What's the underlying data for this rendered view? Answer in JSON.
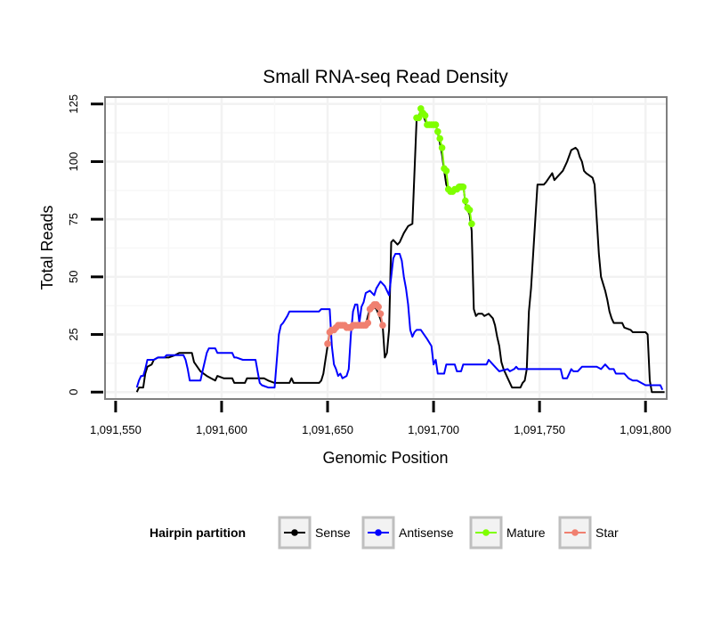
{
  "chart_data": {
    "type": "line",
    "title": "Small RNA-seq Read Density",
    "xlabel": "Genomic Position",
    "ylabel": "Total Reads",
    "xlim": [
      1091545,
      1091810
    ],
    "ylim": [
      -3,
      128
    ],
    "x_ticks": [
      1091550,
      1091600,
      1091650,
      1091700,
      1091750,
      1091800
    ],
    "x_tick_labels": [
      "1,091,550",
      "1,091,600",
      "1,091,650",
      "1,091,700",
      "1,091,750",
      "1,091,800"
    ],
    "y_ticks": [
      0,
      25,
      50,
      75,
      100,
      125
    ],
    "y_tick_labels": [
      "0",
      "25",
      "50",
      "75",
      "100",
      "125"
    ],
    "grid": true,
    "legend": {
      "title": "Hairpin partition",
      "position": "bottom",
      "entries": [
        "Sense",
        "Antisense",
        "Mature",
        "Star"
      ]
    },
    "series": [
      {
        "name": "Sense",
        "color": "#000000",
        "markers": false,
        "points": [
          [
            1091560,
            0
          ],
          [
            1091561,
            2
          ],
          [
            1091562,
            2
          ],
          [
            1091563,
            2
          ],
          [
            1091564,
            8
          ],
          [
            1091565,
            11
          ],
          [
            1091567,
            12
          ],
          [
            1091568,
            14
          ],
          [
            1091570,
            15
          ],
          [
            1091575,
            15
          ],
          [
            1091578,
            16
          ],
          [
            1091580,
            17
          ],
          [
            1091586,
            17
          ],
          [
            1091587,
            13
          ],
          [
            1091590,
            9
          ],
          [
            1091593,
            7
          ],
          [
            1091595,
            6
          ],
          [
            1091597,
            5
          ],
          [
            1091598,
            7
          ],
          [
            1091601,
            6
          ],
          [
            1091605,
            6
          ],
          [
            1091606,
            4
          ],
          [
            1091611,
            4
          ],
          [
            1091612,
            6
          ],
          [
            1091616,
            6
          ],
          [
            1091620,
            6
          ],
          [
            1091622,
            5
          ],
          [
            1091625,
            4
          ],
          [
            1091632,
            4
          ],
          [
            1091633,
            6
          ],
          [
            1091634,
            4
          ],
          [
            1091646,
            4
          ],
          [
            1091647,
            5
          ],
          [
            1091648,
            8
          ],
          [
            1091649,
            14
          ],
          [
            1091650,
            20
          ],
          [
            1091651,
            26
          ],
          [
            1091653,
            28
          ],
          [
            1091658,
            29
          ],
          [
            1091668,
            29
          ],
          [
            1091669,
            33
          ],
          [
            1091670,
            36
          ],
          [
            1091672,
            37
          ],
          [
            1091673,
            36
          ],
          [
            1091674,
            34
          ],
          [
            1091676,
            29
          ],
          [
            1091677,
            15
          ],
          [
            1091678,
            17
          ],
          [
            1091679,
            27
          ],
          [
            1091680,
            65
          ],
          [
            1091681,
            66
          ],
          [
            1091683,
            64
          ],
          [
            1091684,
            65
          ],
          [
            1091686,
            69
          ],
          [
            1091688,
            72
          ],
          [
            1091690,
            73
          ],
          [
            1091692,
            118
          ],
          [
            1091693,
            120
          ],
          [
            1091694,
            122
          ],
          [
            1091695,
            120
          ],
          [
            1091697,
            116
          ],
          [
            1091701,
            116
          ],
          [
            1091702,
            113
          ],
          [
            1091703,
            108
          ],
          [
            1091704,
            103
          ],
          [
            1091705,
            96
          ],
          [
            1091706,
            90
          ],
          [
            1091707,
            88
          ],
          [
            1091710,
            87
          ],
          [
            1091712,
            90
          ],
          [
            1091714,
            90
          ],
          [
            1091715,
            82
          ],
          [
            1091716,
            79
          ],
          [
            1091717,
            77
          ],
          [
            1091718,
            70
          ],
          [
            1091719,
            36
          ],
          [
            1091720,
            33
          ],
          [
            1091721,
            34
          ],
          [
            1091723,
            34
          ],
          [
            1091724,
            33
          ],
          [
            1091726,
            34
          ],
          [
            1091728,
            32
          ],
          [
            1091729,
            29
          ],
          [
            1091730,
            24
          ],
          [
            1091731,
            20
          ],
          [
            1091732,
            13
          ],
          [
            1091733,
            10
          ],
          [
            1091735,
            6
          ],
          [
            1091737,
            2
          ],
          [
            1091741,
            2
          ],
          [
            1091742,
            4
          ],
          [
            1091743,
            5
          ],
          [
            1091744,
            10
          ],
          [
            1091745,
            35
          ],
          [
            1091746,
            45
          ],
          [
            1091747,
            60
          ],
          [
            1091748,
            75
          ],
          [
            1091749,
            90
          ],
          [
            1091752,
            90
          ],
          [
            1091753,
            91
          ],
          [
            1091756,
            95
          ],
          [
            1091757,
            92
          ],
          [
            1091760,
            95
          ],
          [
            1091761,
            96
          ],
          [
            1091763,
            100
          ],
          [
            1091765,
            105
          ],
          [
            1091767,
            106
          ],
          [
            1091768,
            105
          ],
          [
            1091769,
            102
          ],
          [
            1091770,
            100
          ],
          [
            1091771,
            96
          ],
          [
            1091772,
            95
          ],
          [
            1091775,
            93
          ],
          [
            1091776,
            90
          ],
          [
            1091778,
            60
          ],
          [
            1091779,
            50
          ],
          [
            1091781,
            44
          ],
          [
            1091782,
            40
          ],
          [
            1091783,
            35
          ],
          [
            1091784,
            32
          ],
          [
            1091785,
            30
          ],
          [
            1091789,
            30
          ],
          [
            1091790,
            28
          ],
          [
            1091793,
            27
          ],
          [
            1091794,
            26
          ],
          [
            1091799,
            26
          ],
          [
            1091800,
            26
          ],
          [
            1091801,
            25
          ],
          [
            1091802,
            5
          ],
          [
            1091803,
            0
          ],
          [
            1091809,
            0
          ]
        ]
      },
      {
        "name": "Antisense",
        "color": "#0000ff",
        "markers": false,
        "points": [
          [
            1091560,
            2
          ],
          [
            1091561,
            5
          ],
          [
            1091562,
            7
          ],
          [
            1091563,
            7
          ],
          [
            1091564,
            10
          ],
          [
            1091565,
            14
          ],
          [
            1091568,
            14
          ],
          [
            1091570,
            15
          ],
          [
            1091573,
            15
          ],
          [
            1091574,
            16
          ],
          [
            1091582,
            16
          ],
          [
            1091583,
            14
          ],
          [
            1091584,
            10
          ],
          [
            1091585,
            5
          ],
          [
            1091590,
            5
          ],
          [
            1091591,
            9
          ],
          [
            1091592,
            13
          ],
          [
            1091593,
            17
          ],
          [
            1091594,
            19
          ],
          [
            1091597,
            19
          ],
          [
            1091598,
            17
          ],
          [
            1091605,
            17
          ],
          [
            1091606,
            15
          ],
          [
            1091607,
            15
          ],
          [
            1091610,
            14
          ],
          [
            1091611,
            14
          ],
          [
            1091616,
            14
          ],
          [
            1091617,
            9
          ],
          [
            1091618,
            4
          ],
          [
            1091619,
            3
          ],
          [
            1091622,
            2
          ],
          [
            1091625,
            2
          ],
          [
            1091627,
            25
          ],
          [
            1091628,
            29
          ],
          [
            1091629,
            30
          ],
          [
            1091631,
            33
          ],
          [
            1091632,
            35
          ],
          [
            1091646,
            35
          ],
          [
            1091647,
            36
          ],
          [
            1091651,
            36
          ],
          [
            1091652,
            20
          ],
          [
            1091653,
            12
          ],
          [
            1091654,
            10
          ],
          [
            1091655,
            7
          ],
          [
            1091656,
            8
          ],
          [
            1091657,
            6
          ],
          [
            1091659,
            7
          ],
          [
            1091660,
            10
          ],
          [
            1091661,
            25
          ],
          [
            1091662,
            35
          ],
          [
            1091663,
            38
          ],
          [
            1091664,
            38
          ],
          [
            1091665,
            30
          ],
          [
            1091666,
            37
          ],
          [
            1091667,
            39
          ],
          [
            1091668,
            43
          ],
          [
            1091670,
            44
          ],
          [
            1091672,
            42
          ],
          [
            1091673,
            45
          ],
          [
            1091675,
            48
          ],
          [
            1091677,
            46
          ],
          [
            1091679,
            42
          ],
          [
            1091680,
            50
          ],
          [
            1091681,
            58
          ],
          [
            1091682,
            60
          ],
          [
            1091684,
            60
          ],
          [
            1091685,
            57
          ],
          [
            1091686,
            50
          ],
          [
            1091687,
            45
          ],
          [
            1091688,
            38
          ],
          [
            1091689,
            27
          ],
          [
            1091690,
            24
          ],
          [
            1091691,
            26
          ],
          [
            1091692,
            27
          ],
          [
            1091694,
            27
          ],
          [
            1091697,
            23
          ],
          [
            1091699,
            20
          ],
          [
            1091700,
            12
          ],
          [
            1091701,
            14
          ],
          [
            1091702,
            8
          ],
          [
            1091705,
            8
          ],
          [
            1091706,
            12
          ],
          [
            1091710,
            12
          ],
          [
            1091711,
            9
          ],
          [
            1091713,
            9
          ],
          [
            1091714,
            12
          ],
          [
            1091725,
            12
          ],
          [
            1091726,
            14
          ],
          [
            1091728,
            12
          ],
          [
            1091731,
            9
          ],
          [
            1091735,
            10
          ],
          [
            1091736,
            9
          ],
          [
            1091738,
            10
          ],
          [
            1091739,
            11
          ],
          [
            1091740,
            10
          ],
          [
            1091760,
            10
          ],
          [
            1091761,
            6
          ],
          [
            1091763,
            6
          ],
          [
            1091765,
            10
          ],
          [
            1091766,
            9
          ],
          [
            1091768,
            9
          ],
          [
            1091770,
            11
          ],
          [
            1091777,
            11
          ],
          [
            1091779,
            10
          ],
          [
            1091781,
            12
          ],
          [
            1091783,
            10
          ],
          [
            1091785,
            10
          ],
          [
            1091786,
            8
          ],
          [
            1091790,
            8
          ],
          [
            1091792,
            6
          ],
          [
            1091794,
            5
          ],
          [
            1091796,
            5
          ],
          [
            1091798,
            4
          ],
          [
            1091800,
            3
          ],
          [
            1091807,
            3
          ],
          [
            1091808,
            1
          ]
        ]
      },
      {
        "name": "Mature",
        "color": "#7fff00",
        "markers": true,
        "points": [
          [
            1091692,
            119
          ],
          [
            1091693,
            119
          ],
          [
            1091694,
            123
          ],
          [
            1091695,
            121
          ],
          [
            1091696,
            120
          ],
          [
            1091697,
            116
          ],
          [
            1091698,
            116
          ],
          [
            1091699,
            116
          ],
          [
            1091700,
            116
          ],
          [
            1091701,
            116
          ],
          [
            1091702,
            113
          ],
          [
            1091703,
            110
          ],
          [
            1091704,
            106
          ],
          [
            1091705,
            97
          ],
          [
            1091706,
            96
          ],
          [
            1091707,
            88
          ],
          [
            1091708,
            87
          ],
          [
            1091709,
            87
          ],
          [
            1091710,
            88
          ],
          [
            1091711,
            88
          ],
          [
            1091712,
            89
          ],
          [
            1091713,
            89
          ],
          [
            1091714,
            89
          ],
          [
            1091715,
            83
          ],
          [
            1091716,
            80
          ],
          [
            1091717,
            79
          ],
          [
            1091718,
            73
          ]
        ]
      },
      {
        "name": "Star",
        "color": "#f08070",
        "markers": true,
        "points": [
          [
            1091650,
            21
          ],
          [
            1091651,
            26
          ],
          [
            1091652,
            27
          ],
          [
            1091653,
            27
          ],
          [
            1091654,
            28
          ],
          [
            1091655,
            29
          ],
          [
            1091656,
            29
          ],
          [
            1091657,
            29
          ],
          [
            1091658,
            29
          ],
          [
            1091659,
            28
          ],
          [
            1091660,
            28
          ],
          [
            1091661,
            28
          ],
          [
            1091662,
            29
          ],
          [
            1091663,
            29
          ],
          [
            1091664,
            29
          ],
          [
            1091665,
            29
          ],
          [
            1091666,
            29
          ],
          [
            1091667,
            29
          ],
          [
            1091668,
            29
          ],
          [
            1091669,
            30
          ],
          [
            1091670,
            36
          ],
          [
            1091671,
            37
          ],
          [
            1091672,
            38
          ],
          [
            1091673,
            38
          ],
          [
            1091674,
            37
          ],
          [
            1091675,
            34
          ],
          [
            1091676,
            29
          ]
        ]
      }
    ]
  }
}
